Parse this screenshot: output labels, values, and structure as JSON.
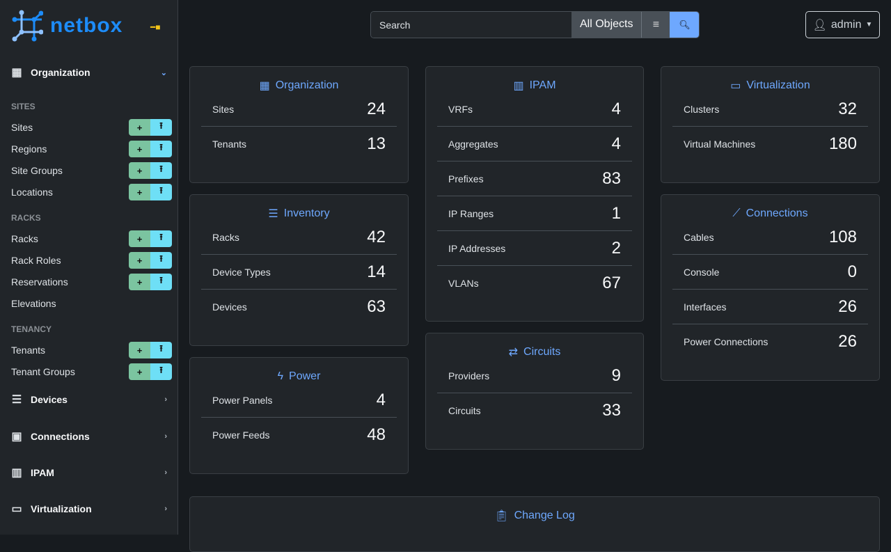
{
  "sidebar": {
    "brand": "netbox",
    "organization": "Organization",
    "sections": {
      "sites": "SITES",
      "racks": "RACKS",
      "tenancy": "TENANCY"
    },
    "items": {
      "sites": "Sites",
      "regions": "Regions",
      "site_groups": "Site Groups",
      "locations": "Locations",
      "racks": "Racks",
      "rack_roles": "Rack Roles",
      "reservations": "Reservations",
      "elevations": "Elevations",
      "tenants": "Tenants",
      "tenant_groups": "Tenant Groups"
    },
    "menus": {
      "devices": "Devices",
      "connections": "Connections",
      "ipam": "IPAM",
      "virtualization": "Virtualization"
    },
    "add_icon": "+",
    "import_icon": "⭱"
  },
  "search": {
    "placeholder": "Search",
    "scope": "All Objects"
  },
  "user": {
    "name": "admin"
  },
  "colors": {
    "accent": "#6ea8fe",
    "brand": "#1d8cf8",
    "add": "#7bc4a0",
    "import": "#6edff6"
  },
  "cards": {
    "organization": {
      "title": "Organization",
      "rows": [
        [
          "Sites",
          "24"
        ],
        [
          "Tenants",
          "13"
        ]
      ]
    },
    "inventory": {
      "title": "Inventory",
      "rows": [
        [
          "Racks",
          "42"
        ],
        [
          "Device Types",
          "14"
        ],
        [
          "Devices",
          "63"
        ]
      ]
    },
    "power": {
      "title": "Power",
      "rows": [
        [
          "Power Panels",
          "4"
        ],
        [
          "Power Feeds",
          "48"
        ]
      ]
    },
    "ipam": {
      "title": "IPAM",
      "rows": [
        [
          "VRFs",
          "4"
        ],
        [
          "Aggregates",
          "4"
        ],
        [
          "Prefixes",
          "83"
        ],
        [
          "IP Ranges",
          "1"
        ],
        [
          "IP Addresses",
          "2"
        ],
        [
          "VLANs",
          "67"
        ]
      ]
    },
    "circuits": {
      "title": "Circuits",
      "rows": [
        [
          "Providers",
          "9"
        ],
        [
          "Circuits",
          "33"
        ]
      ]
    },
    "virtualization": {
      "title": "Virtualization",
      "rows": [
        [
          "Clusters",
          "32"
        ],
        [
          "Virtual Machines",
          "180"
        ]
      ]
    },
    "connections": {
      "title": "Connections",
      "rows": [
        [
          "Cables",
          "108"
        ],
        [
          "Console",
          "0"
        ],
        [
          "Interfaces",
          "26"
        ],
        [
          "Power Connections",
          "26"
        ]
      ]
    },
    "changelog": {
      "title": "Change Log"
    }
  }
}
